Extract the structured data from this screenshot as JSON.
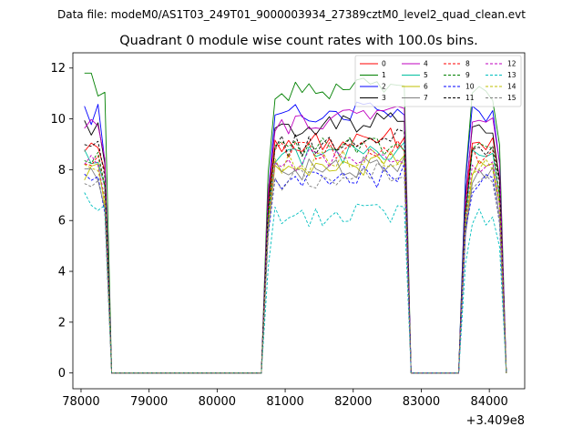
{
  "suptitle": "Data file: modeM0/AS1T03_249T01_9000003934_27389cztM0_level2_quad_clean.evt",
  "chart_data": {
    "type": "line",
    "title": "Quadrant 0 module wise count rates with 100.0s bins.",
    "xlabel": "",
    "ylabel": "",
    "x_offset_label": "+3.409e8",
    "xlim": [
      77880,
      84520
    ],
    "ylim": [
      -0.62,
      12.6
    ],
    "xticks": [
      78000,
      79000,
      80000,
      81000,
      82000,
      83000,
      84000
    ],
    "xtick_labels": [
      "78000",
      "79000",
      "80000",
      "81000",
      "82000",
      "83000",
      "84000"
    ],
    "yticks": [
      0,
      2,
      4,
      6,
      8,
      10,
      12
    ],
    "ytick_labels": [
      "0",
      "2",
      "4",
      "6",
      "8",
      "10",
      "12"
    ],
    "legend_position": "upper right",
    "x_start": 78050,
    "bin_width": 100,
    "active_segments": [
      {
        "first_bin": 0,
        "last_bin": 3
      },
      {
        "first_bin": 27,
        "last_bin": 47
      },
      {
        "first_bin": 56,
        "last_bin": 61
      }
    ],
    "series": [
      {
        "name": "0",
        "color": "#ff0000",
        "style": "solid",
        "base": 9.0
      },
      {
        "name": "1",
        "color": "#008000",
        "style": "solid",
        "base": 11.1,
        "first_values": [
          11.8,
          11.8,
          10.9,
          11.05
        ]
      },
      {
        "name": "2",
        "color": "#0000ff",
        "style": "solid",
        "base": 10.2
      },
      {
        "name": "3",
        "color": "#000000",
        "style": "solid",
        "base": 9.6
      },
      {
        "name": "4",
        "color": "#bf00bf",
        "style": "solid",
        "base": 9.8
      },
      {
        "name": "5",
        "color": "#00bf9f",
        "style": "solid",
        "base": 8.4
      },
      {
        "name": "6",
        "color": "#bfbf00",
        "style": "solid",
        "base": 8.0
      },
      {
        "name": "7",
        "color": "#808080",
        "style": "solid",
        "base": 7.9
      },
      {
        "name": "8",
        "color": "#ff0000",
        "style": "dashed",
        "base": 8.6
      },
      {
        "name": "9",
        "color": "#008000",
        "style": "dashed",
        "base": 8.7
      },
      {
        "name": "10",
        "color": "#0000ff",
        "style": "dashed",
        "base": 7.5
      },
      {
        "name": "11",
        "color": "#000000",
        "style": "dashed",
        "base": 8.9
      },
      {
        "name": "12",
        "color": "#bf00bf",
        "style": "dashed",
        "base": 8.3
      },
      {
        "name": "13",
        "color": "#00bfbf",
        "style": "dashed",
        "base": 6.1,
        "first_values": [
          7.1,
          6.6,
          6.4,
          6.6
        ]
      },
      {
        "name": "14",
        "color": "#bfbf00",
        "style": "dashed",
        "base": 8.2
      },
      {
        "name": "15",
        "color": "#808080",
        "style": "dashed",
        "base": 7.6
      }
    ]
  }
}
